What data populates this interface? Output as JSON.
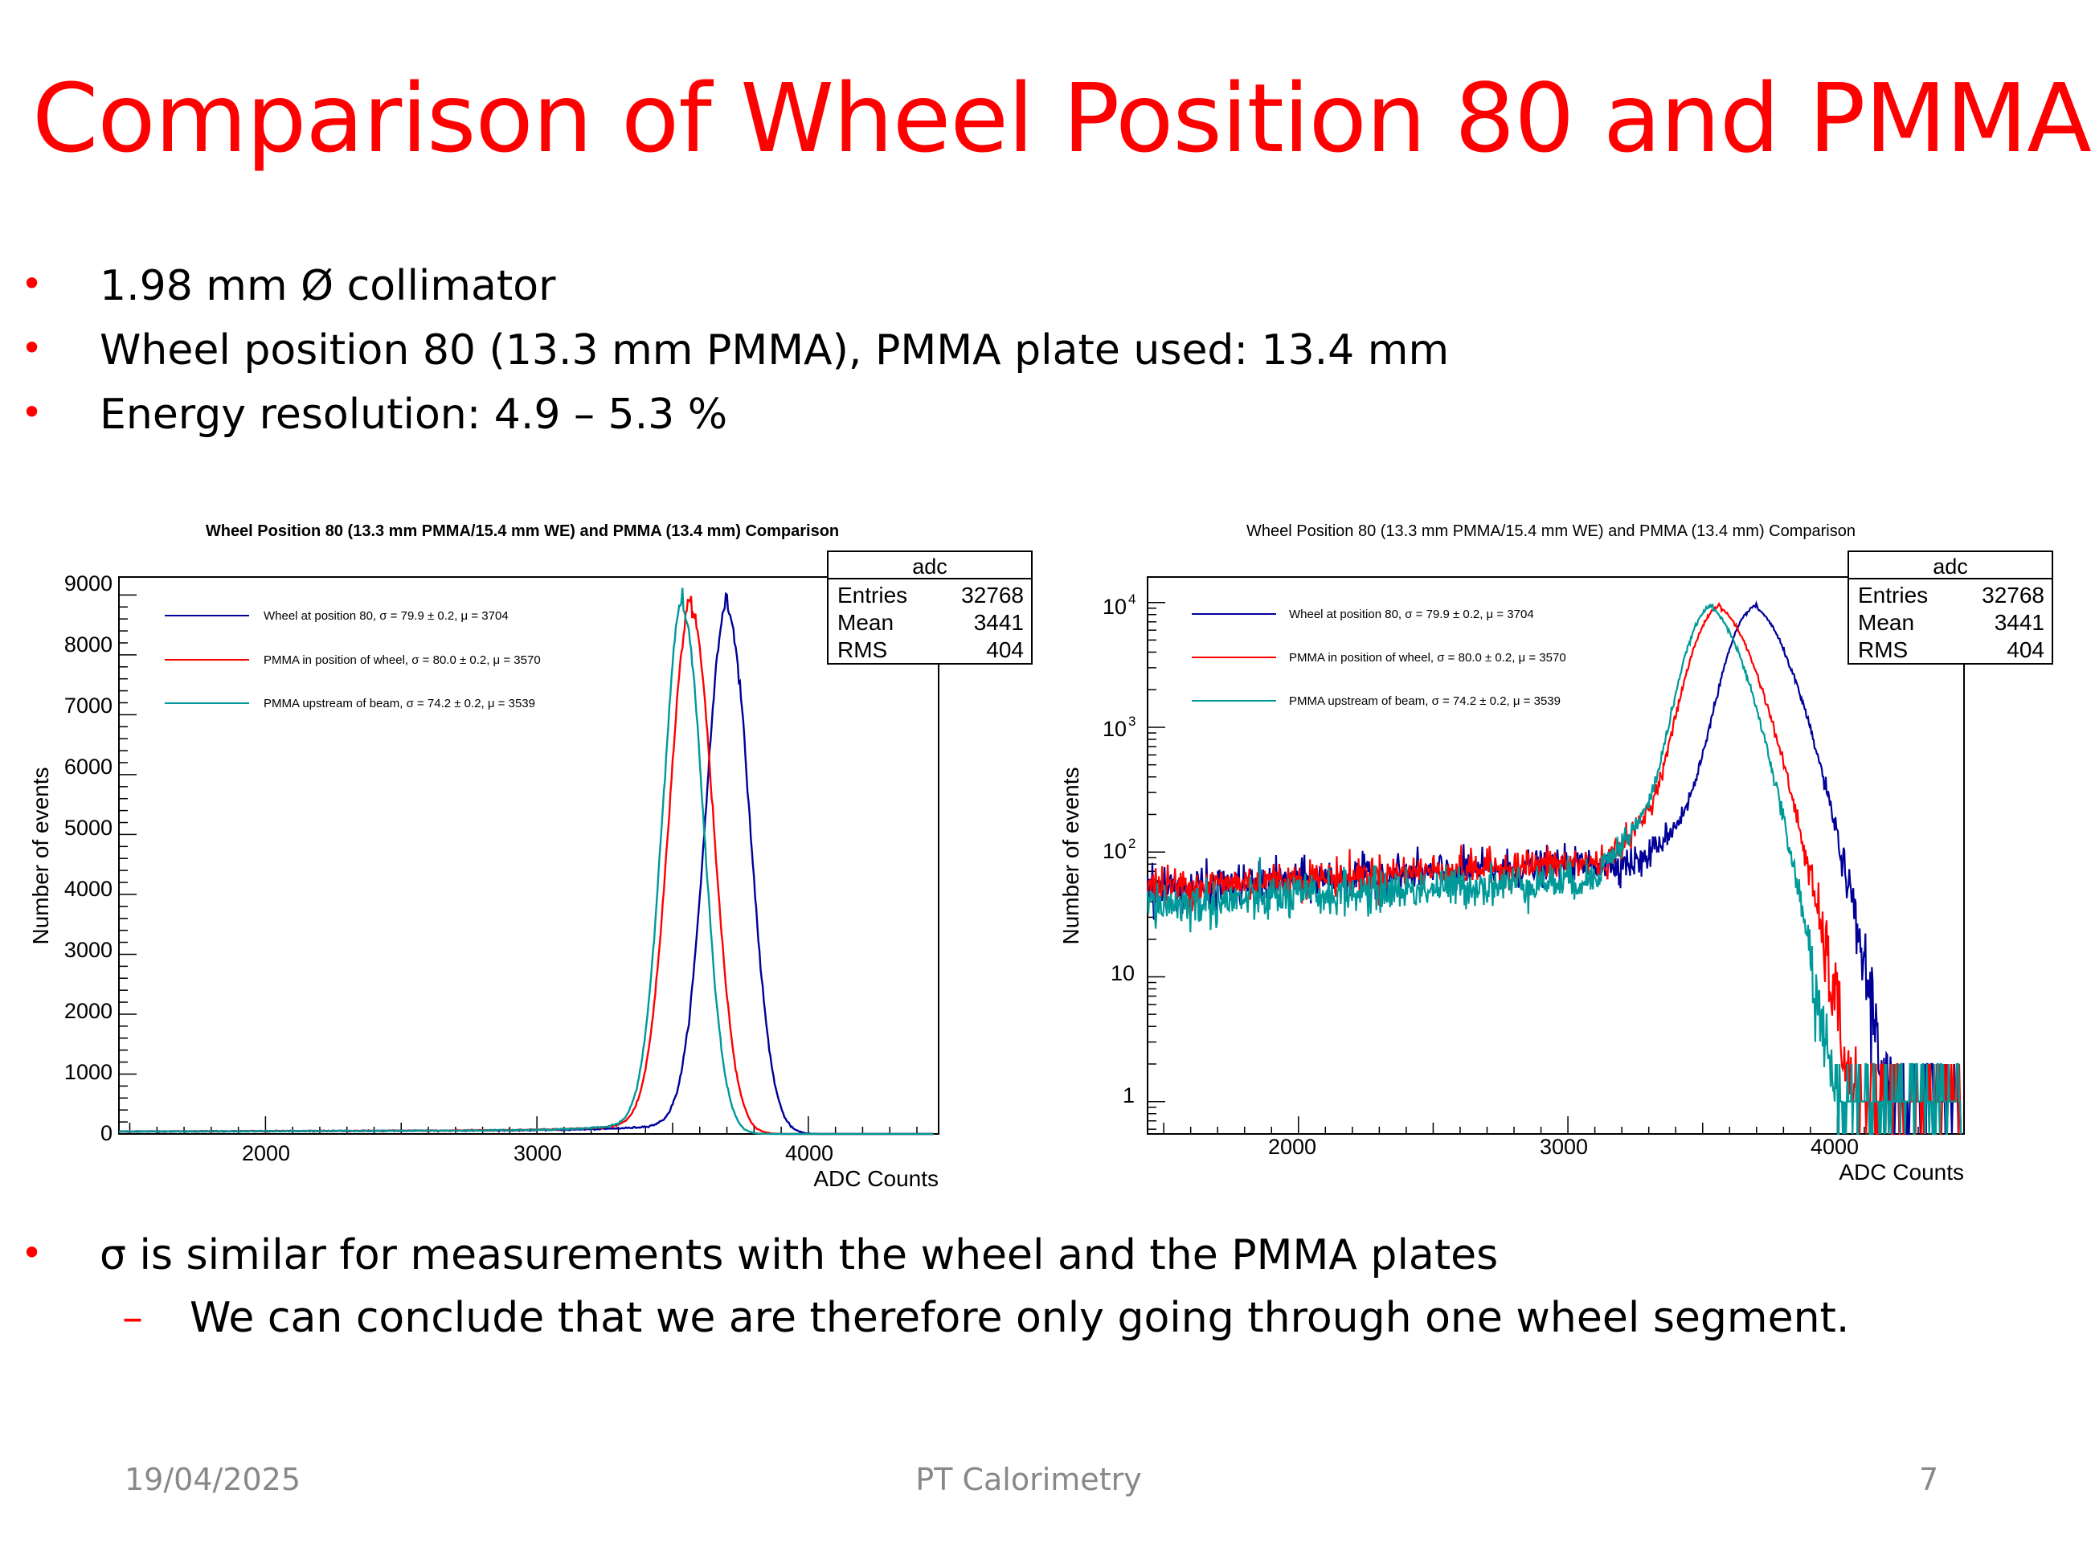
{
  "slide": {
    "title": "Comparison of Wheel Position 80 and PMMA",
    "bullets": [
      "1.98 mm Ø collimator",
      "Wheel position 80 (13.3 mm PMMA), PMMA plate used: 13.4 mm",
      "Energy resolution: 4.9 – 5.3 %"
    ],
    "conclusion": {
      "bullet": "σ is similar for measurements with the wheel and the PMMA plates",
      "sub_bullet": "We can conclude that we are therefore only going through one wheel segment."
    },
    "footer": {
      "date": "19/04/2025",
      "center": "PT Calorimetry",
      "page": "7"
    }
  },
  "stats_box": {
    "title": "adc",
    "rows": [
      {
        "label": "Entries",
        "value": "32768"
      },
      {
        "label": "Mean",
        "value": "3441"
      },
      {
        "label": "RMS",
        "value": "404"
      }
    ]
  },
  "chart_data": [
    {
      "type": "line",
      "title": "Wheel Position 80 (13.3 mm PMMA/15.4 mm WE) and PMMA (13.4 mm) Comparison",
      "xlabel": "ADC Counts",
      "ylabel": "Number of events",
      "x_scale": "linear",
      "y_scale": "linear",
      "xlim": [
        1460,
        4480
      ],
      "ylim": [
        0,
        9300
      ],
      "x_ticks": [
        "2000",
        "3000",
        "4000"
      ],
      "y_ticks": [
        "0",
        "1000",
        "2000",
        "3000",
        "4000",
        "5000",
        "6000",
        "7000",
        "8000",
        "9000"
      ],
      "legend_position": "top-left",
      "series": [
        {
          "name": "Wheel at position 80, σ = 79.9 ± 0.2, μ = 3704",
          "color": "#000099",
          "mu": 3704,
          "sigma": 79.9,
          "peak": 8700
        },
        {
          "name": "PMMA in position of wheel, σ = 80.0 ± 0.2, μ = 3570",
          "color": "#ff0000",
          "mu": 3570,
          "sigma": 80.0,
          "peak": 8700
        },
        {
          "name": "PMMA upstream of beam, σ = 74.2 ± 0.2, μ = 3539",
          "color": "#009999",
          "mu": 3539,
          "sigma": 74.2,
          "peak": 8700
        }
      ]
    },
    {
      "type": "line",
      "title": "Wheel Position 80 (13.3 mm PMMA/15.4 mm WE) and PMMA (13.4 mm) Comparison",
      "xlabel": "ADC Counts",
      "ylabel": "Number of events",
      "x_scale": "linear",
      "y_scale": "log",
      "xlim": [
        1440,
        4470
      ],
      "ylim": [
        0.55,
        16000
      ],
      "x_ticks": [
        "2000",
        "3000",
        "4000"
      ],
      "y_ticks": [
        "1",
        "10",
        "10^2",
        "10^3",
        "10^4"
      ],
      "legend_position": "top-left",
      "series": [
        {
          "name": "Wheel at position 80, σ = 79.9 ± 0.2, μ = 3704",
          "color": "#000099",
          "mu": 3704,
          "sigma": 79.9,
          "peak": 8700,
          "tail_level": 60
        },
        {
          "name": "PMMA in position of wheel, σ = 80.0 ± 0.2, μ = 3570",
          "color": "#ff0000",
          "mu": 3570,
          "sigma": 80.0,
          "peak": 8700,
          "tail_level": 62
        },
        {
          "name": "PMMA upstream of beam, σ = 74.2 ± 0.2, μ = 3539",
          "color": "#009999",
          "mu": 3539,
          "sigma": 74.2,
          "peak": 8700,
          "tail_level": 45
        }
      ]
    }
  ]
}
